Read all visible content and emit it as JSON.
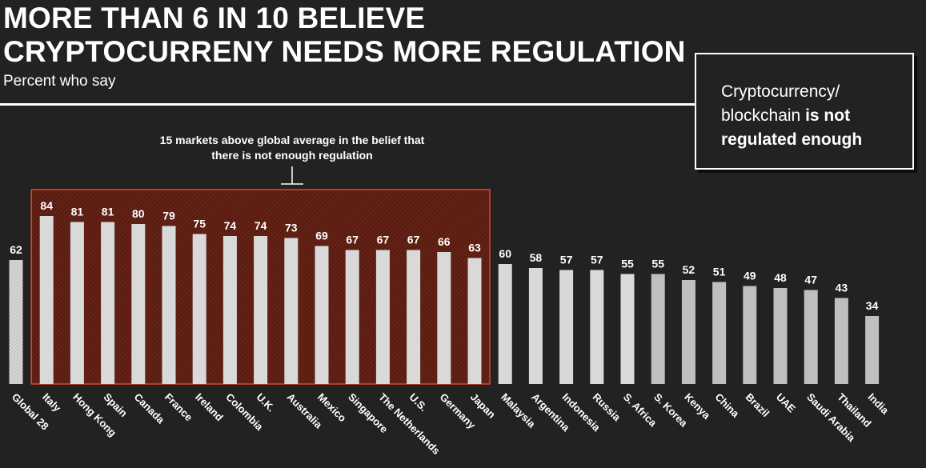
{
  "title_line1": "MORE THAN 6 IN 10 BELIEVE",
  "title_line2": "CRYPTOCURRENY NEEDS MORE REGULATION",
  "subtitle": "Percent who say",
  "callout": {
    "text_line1": "Cryptocurrency/",
    "text_line2_plain": "blockchain ",
    "text_line2_bold": "is not",
    "text_line3_bold": "regulated enough"
  },
  "annotation_line1": "15 markets above global average in the belief that",
  "annotation_line2": "there is not enough regulation",
  "colors": {
    "background": "#212221",
    "bar": "#d9d9d9",
    "bar_dark": "#bfbfbf",
    "highlight_fill": "#5a1d12",
    "highlight_border": "#e0442a"
  },
  "chart_data": {
    "type": "bar",
    "title": "MORE THAN 6 IN 10 BELIEVE CRYPTOCURRENY NEEDS MORE REGULATION",
    "subtitle": "Percent who say",
    "xlabel": "",
    "ylabel": "",
    "ylim": [
      0,
      100
    ],
    "grid": false,
    "categories": [
      "Global 28",
      "Italy",
      "Hong Kong",
      "Spain",
      "Canada",
      "France",
      "Ireland",
      "Colombia",
      "U.K.",
      "Australia",
      "Mexico",
      "Singapore",
      "The Netherlands",
      "U.S.",
      "Germany",
      "Japan",
      "Malaysia",
      "Argentina",
      "Indonesia",
      "Russia",
      "S. Africa",
      "S. Korea",
      "Kenya",
      "China",
      "Brazil",
      "UAE",
      "Saudi Arabia",
      "Thailand",
      "India"
    ],
    "values": [
      62,
      84,
      81,
      81,
      80,
      79,
      75,
      74,
      74,
      73,
      69,
      67,
      67,
      67,
      66,
      63,
      60,
      58,
      57,
      57,
      55,
      55,
      52,
      51,
      49,
      48,
      47,
      43,
      34
    ],
    "highlighted_range": [
      "Italy",
      "Japan"
    ],
    "global_average_category": "Global 28"
  }
}
